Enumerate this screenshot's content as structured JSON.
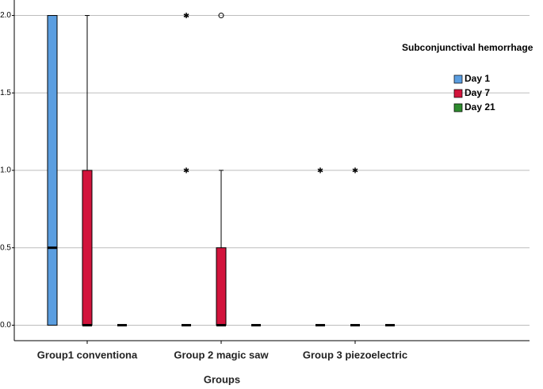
{
  "chart_data": {
    "type": "box",
    "categories": [
      "Group1 conventiona",
      "Group 2 magic saw",
      "Group 3 piezoelectric"
    ],
    "x_label": "Groups",
    "legend_title": "Subconjunctival hemorrhage",
    "legend_position": "right",
    "grid": true,
    "ylim": [
      -0.1,
      2.1
    ],
    "yticks": [
      {
        "value": 0,
        "label": "0.0"
      },
      {
        "value": 0.5,
        "label": "0.5"
      },
      {
        "value": 1,
        "label": "1.0"
      },
      {
        "value": 1.5,
        "label": "1.5"
      },
      {
        "value": 2,
        "label": "2.0"
      }
    ],
    "series": [
      {
        "name": "Day 1",
        "color": "#5b9ee0",
        "boxes": [
          {
            "min": 0,
            "q1": 0,
            "median": 0.5,
            "q3": 2,
            "max": 2,
            "outliers": [],
            "extremes": []
          },
          {
            "min": 0,
            "q1": 0,
            "median": 0,
            "q3": 0,
            "max": 0,
            "outliers": [],
            "extremes": [
              1,
              2
            ]
          },
          {
            "min": 0,
            "q1": 0,
            "median": 0,
            "q3": 0,
            "max": 0,
            "outliers": [],
            "extremes": [
              1
            ]
          }
        ]
      },
      {
        "name": "Day 7",
        "color": "#d2143c",
        "boxes": [
          {
            "min": 0,
            "q1": 0,
            "median": 0,
            "q3": 1,
            "max": 2,
            "outliers": [],
            "extremes": []
          },
          {
            "min": 0,
            "q1": 0,
            "median": 0,
            "q3": 0.5,
            "max": 1,
            "outliers": [
              2
            ],
            "extremes": []
          },
          {
            "min": 0,
            "q1": 0,
            "median": 0,
            "q3": 0,
            "max": 0,
            "outliers": [],
            "extremes": [
              1
            ]
          }
        ]
      },
      {
        "name": "Day 21",
        "color": "#2e8b2e",
        "boxes": [
          {
            "min": 0,
            "q1": 0,
            "median": 0,
            "q3": 0,
            "max": 0,
            "outliers": [],
            "extremes": []
          },
          {
            "min": 0,
            "q1": 0,
            "median": 0,
            "q3": 0,
            "max": 0,
            "outliers": [],
            "extremes": []
          },
          {
            "min": 0,
            "q1": 0,
            "median": 0,
            "q3": 0,
            "max": 0,
            "outliers": [],
            "extremes": []
          }
        ]
      }
    ]
  }
}
